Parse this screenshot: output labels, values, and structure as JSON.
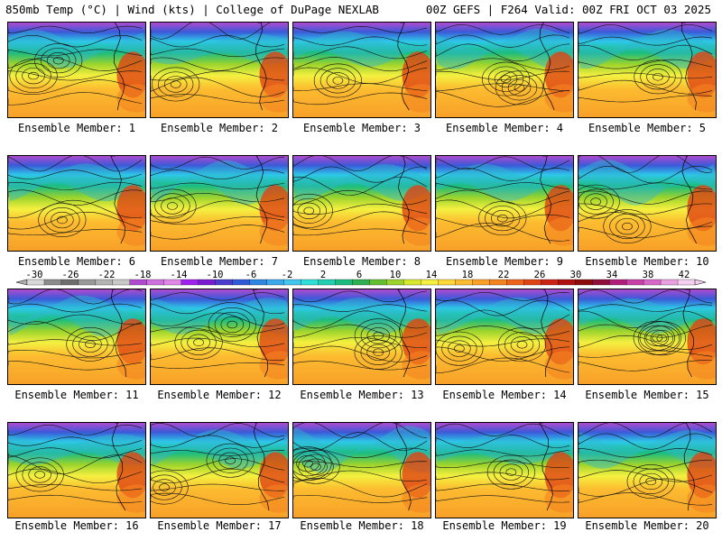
{
  "header": {
    "left": "850mb Temp (°C) | Wind (kts) | College of DuPage NEXLAB",
    "right": "00Z GEFS | F264 Valid: 00Z FRI OCT 03 2025"
  },
  "members": [
    "Ensemble Member: 1",
    "Ensemble Member: 2",
    "Ensemble Member: 3",
    "Ensemble Member: 4",
    "Ensemble Member: 5",
    "Ensemble Member: 6",
    "Ensemble Member: 7",
    "Ensemble Member: 8",
    "Ensemble Member: 9",
    "Ensemble Member: 10",
    "Ensemble Member: 11",
    "Ensemble Member: 12",
    "Ensemble Member: 13",
    "Ensemble Member: 14",
    "Ensemble Member: 15",
    "Ensemble Member: 16",
    "Ensemble Member: 17",
    "Ensemble Member: 18",
    "Ensemble Member: 19",
    "Ensemble Member: 20"
  ],
  "colorbar": {
    "tick_labels": [
      "-30",
      "-26",
      "-22",
      "-18",
      "-14",
      "-10",
      "-6",
      "-2",
      "2",
      "6",
      "10",
      "14",
      "18",
      "22",
      "26",
      "30",
      "34",
      "38",
      "42"
    ],
    "colors": [
      "#d8d8d8",
      "#8c8c8c",
      "#6e6e6e",
      "#9a9a9a",
      "#b4b4b4",
      "#c8c8c8",
      "#b04ad0",
      "#d070e0",
      "#e088e8",
      "#a020f0",
      "#7a1cd0",
      "#4b3cd0",
      "#2f5ad8",
      "#2e86e0",
      "#3aa8ea",
      "#42c6ee",
      "#2ee0d8",
      "#20d0b0",
      "#1cbc80",
      "#30b050",
      "#62c030",
      "#9cd42c",
      "#d6e830",
      "#f4f040",
      "#fdd838",
      "#fcbc30",
      "#f8a028",
      "#f48420",
      "#ee6418",
      "#e04414",
      "#cc2414",
      "#b01010",
      "#8c0c0c",
      "#900e3a",
      "#b0207a",
      "#c840a8",
      "#d868c8",
      "#e8a0e0",
      "#f4d0f0"
    ]
  }
}
